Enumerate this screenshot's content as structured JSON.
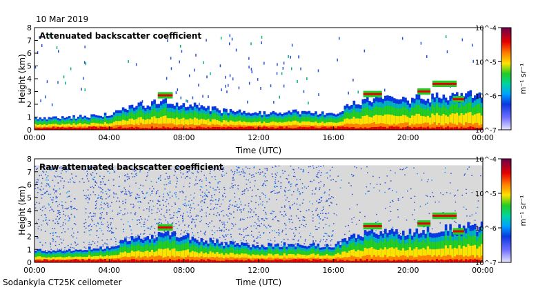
{
  "figure": {
    "date": "10 Mar 2019",
    "footer": "Sodankyla CT25K ceilometer",
    "colors": {
      "background_raw": "#d9d9d9",
      "noise": "#2a4fd8",
      "low": "#0a0adc",
      "mid_green": "#22cc22",
      "yellow": "#ffe100",
      "orange": "#ff8000",
      "red": "#e60000"
    }
  },
  "chart_data": [
    {
      "type": "heatmap",
      "title": "Attenuated backscatter coefficient",
      "xlabel": "Time (UTC)",
      "ylabel": "Height (km)",
      "x_ticks": [
        "00:00",
        "04:00",
        "08:00",
        "12:00",
        "16:00",
        "20:00",
        "00:00"
      ],
      "x_range_hours": [
        0,
        24
      ],
      "y_ticks": [
        "0",
        "1",
        "2",
        "3",
        "4",
        "5",
        "6",
        "7",
        "8"
      ],
      "ylim": [
        0,
        8
      ],
      "colorbar": {
        "scale": "log",
        "ticks": [
          "10^-7",
          "10^-6",
          "10^-5",
          "10^-4"
        ],
        "tick_values": [
          1e-07,
          1e-06,
          1e-05,
          0.0001
        ],
        "unit": "m⁻¹ sr⁻¹"
      },
      "boundary_layer_top_km": [
        [
          0,
          0.9
        ],
        [
          2,
          1.0
        ],
        [
          4,
          1.2
        ],
        [
          5,
          1.8
        ],
        [
          6,
          2.0
        ],
        [
          7,
          2.2
        ],
        [
          8,
          2.0
        ],
        [
          10,
          1.5
        ],
        [
          12,
          1.3
        ],
        [
          14,
          1.4
        ],
        [
          16,
          1.3
        ],
        [
          17,
          2.0
        ],
        [
          18,
          2.3
        ],
        [
          20,
          2.4
        ],
        [
          22,
          2.6
        ],
        [
          24,
          2.8
        ]
      ],
      "cloud_layers": [
        {
          "start_h": 6.6,
          "end_h": 7.4,
          "height_km": 2.7
        },
        {
          "start_h": 17.6,
          "end_h": 18.6,
          "height_km": 2.8
        },
        {
          "start_h": 20.5,
          "end_h": 21.2,
          "height_km": 3.0
        },
        {
          "start_h": 21.3,
          "end_h": 22.6,
          "height_km": 3.6
        },
        {
          "start_h": 22.4,
          "end_h": 23.0,
          "height_km": 2.4
        }
      ]
    },
    {
      "type": "heatmap",
      "title": "Raw attenuated backscatter coefficient",
      "xlabel": "Time (UTC)",
      "ylabel": "Height (km)",
      "x_ticks": [
        "00:00",
        "04:00",
        "08:00",
        "12:00",
        "16:00",
        "20:00",
        "00:00"
      ],
      "x_range_hours": [
        0,
        24
      ],
      "y_ticks": [
        "0",
        "1",
        "2",
        "3",
        "4",
        "5",
        "6",
        "7",
        "8"
      ],
      "ylim": [
        0,
        8
      ],
      "noise_top_km": 7.5,
      "colorbar": {
        "scale": "log",
        "ticks": [
          "10^-7",
          "10^-6",
          "10^-5",
          "10^-4"
        ],
        "tick_values": [
          1e-07,
          1e-06,
          1e-05,
          0.0001
        ],
        "unit": "m⁻¹ sr⁻¹"
      }
    }
  ]
}
